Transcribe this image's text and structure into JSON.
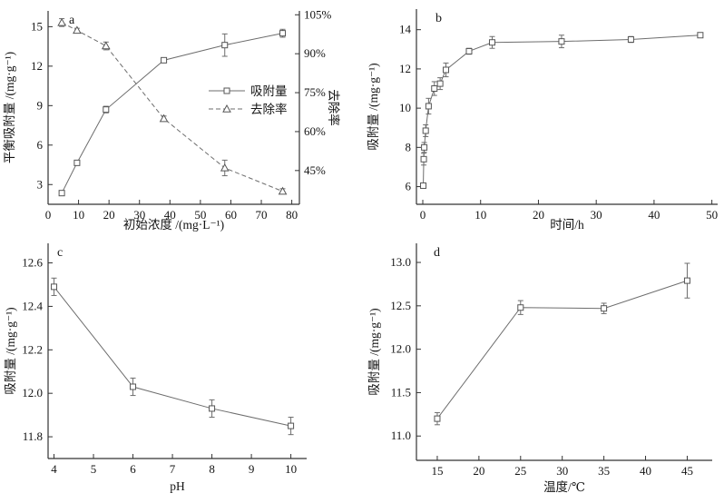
{
  "figure": {
    "description": "Four-panel adsorption experiment figure",
    "panels": [
      "a",
      "b",
      "c",
      "d"
    ]
  },
  "colors": {
    "background": "#ffffff",
    "axis": "#333333",
    "line": "#6d6d6d",
    "marker": "#555555",
    "text": "#141414"
  },
  "chart_data": [
    {
      "id": "a",
      "panel_label": "a",
      "type": "line",
      "xlabel": "初始浓度 /(mg·L⁻¹)",
      "ylabel": "平衡吸附量 /(mg·g⁻¹)",
      "y2label": "去除率",
      "xlim": [
        0,
        82.5
      ],
      "ylim": [
        1.5,
        16.2
      ],
      "y2lim": [
        32,
        106.5
      ],
      "xticks": [
        0,
        10,
        20,
        30,
        40,
        50,
        60,
        70,
        80
      ],
      "yticks": [
        3,
        6,
        9,
        12,
        15
      ],
      "y2ticks": [
        45,
        60,
        75,
        90,
        105
      ],
      "y2suffix": "%",
      "grid": false,
      "legend": true,
      "legend_position": "center-right",
      "series": [
        {
          "name": "吸附量",
          "axis": "y",
          "marker": "square",
          "line": "solid",
          "x": [
            4.5,
            9.5,
            19,
            38,
            58,
            77
          ],
          "y": [
            2.35,
            4.65,
            8.7,
            12.45,
            13.6,
            14.5
          ],
          "yerr": [
            0.12,
            0.12,
            0.25,
            0.15,
            0.85,
            0.3
          ]
        },
        {
          "name": "去除率",
          "axis": "y2",
          "marker": "triangle",
          "line": "dashed",
          "x": [
            4.5,
            9.5,
            19,
            38,
            58,
            77
          ],
          "y": [
            102,
            99,
            93,
            65,
            46,
            37
          ],
          "yerr": [
            1.5,
            0.8,
            1.5,
            1,
            3,
            1
          ]
        }
      ]
    },
    {
      "id": "b",
      "panel_label": "b",
      "type": "line",
      "xlabel": "时间/h",
      "ylabel": "吸附量 /(mg·g⁻¹)",
      "xlim": [
        -1.1,
        51
      ],
      "ylim": [
        5.1,
        15.05
      ],
      "xticks": [
        0,
        10,
        20,
        30,
        40,
        50
      ],
      "yticks": [
        6,
        8,
        10,
        12,
        14
      ],
      "grid": false,
      "legend": false,
      "series": [
        {
          "name": "吸附量",
          "axis": "y",
          "marker": "square",
          "line": "solid",
          "x": [
            0.083,
            0.167,
            0.25,
            0.5,
            1,
            2,
            3,
            4,
            8,
            12,
            24,
            36,
            48
          ],
          "y": [
            6.05,
            7.4,
            8.0,
            8.85,
            10.1,
            11.0,
            11.25,
            11.95,
            12.9,
            13.35,
            13.4,
            13.5,
            13.72
          ],
          "yerr": [
            0.1,
            0.3,
            0.25,
            0.3,
            0.4,
            0.35,
            0.3,
            0.35,
            0.15,
            0.3,
            0.32,
            0.15,
            0.08
          ]
        }
      ]
    },
    {
      "id": "c",
      "panel_label": "c",
      "type": "line",
      "xlabel": "pH",
      "ylabel": "吸附量 /(mg·g⁻¹)",
      "xlim": [
        3.85,
        10.4
      ],
      "ylim": [
        11.7,
        12.69
      ],
      "xticks": [
        4,
        5,
        6,
        7,
        8,
        9,
        10
      ],
      "yticks": [
        11.8,
        12.0,
        12.2,
        12.4,
        12.6
      ],
      "ytick_decimals": 1,
      "grid": false,
      "legend": false,
      "series": [
        {
          "name": "吸附量",
          "axis": "y",
          "marker": "square",
          "line": "solid",
          "x": [
            4,
            6,
            8,
            10
          ],
          "y": [
            12.49,
            12.03,
            11.93,
            11.85
          ],
          "yerr": [
            0.04,
            0.04,
            0.04,
            0.04
          ]
        }
      ]
    },
    {
      "id": "d",
      "panel_label": "d",
      "type": "line",
      "xlabel": "温度/℃",
      "ylabel": "吸附量 /(mg·g⁻¹)",
      "xlim": [
        12.5,
        48
      ],
      "ylim": [
        10.72,
        13.22
      ],
      "xticks": [
        15,
        20,
        25,
        30,
        35,
        40,
        45
      ],
      "yticks": [
        11.0,
        11.5,
        12.0,
        12.5,
        13.0
      ],
      "ytick_decimals": 1,
      "grid": false,
      "legend": false,
      "series": [
        {
          "name": "吸附量",
          "axis": "y",
          "marker": "square",
          "line": "solid",
          "x": [
            15,
            25,
            35,
            45
          ],
          "y": [
            11.2,
            12.48,
            12.47,
            12.79
          ],
          "yerr": [
            0.07,
            0.08,
            0.06,
            0.2
          ]
        }
      ]
    }
  ]
}
